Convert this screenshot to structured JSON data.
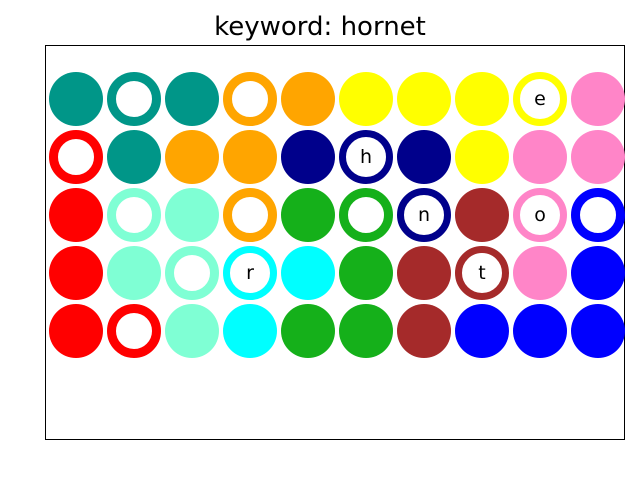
{
  "title": "keyword: hornet",
  "colors": {
    "teal": "#009688",
    "orange": "#ffa500",
    "yellow": "#ffff00",
    "pink": "#ff85c8",
    "red": "#ff0000",
    "navy": "#00008b",
    "aquamarine": "#7fffd4",
    "green": "#15b01a",
    "brown": "#a52a2a",
    "blue": "#0000ff",
    "cyan": "#00ffff"
  },
  "grid": [
    [
      {
        "color": "teal",
        "style": "filled",
        "letter": ""
      },
      {
        "color": "teal",
        "style": "ring",
        "letter": ""
      },
      {
        "color": "teal",
        "style": "filled",
        "letter": ""
      },
      {
        "color": "orange",
        "style": "ring",
        "letter": ""
      },
      {
        "color": "orange",
        "style": "filled",
        "letter": ""
      },
      {
        "color": "yellow",
        "style": "filled",
        "letter": ""
      },
      {
        "color": "yellow",
        "style": "filled",
        "letter": ""
      },
      {
        "color": "yellow",
        "style": "filled",
        "letter": ""
      },
      {
        "color": "yellow",
        "style": "ring",
        "letter": "e"
      },
      {
        "color": "pink",
        "style": "filled",
        "letter": ""
      }
    ],
    [
      {
        "color": "red",
        "style": "ring",
        "letter": ""
      },
      {
        "color": "teal",
        "style": "filled",
        "letter": ""
      },
      {
        "color": "orange",
        "style": "filled",
        "letter": ""
      },
      {
        "color": "orange",
        "style": "filled",
        "letter": ""
      },
      {
        "color": "navy",
        "style": "filled",
        "letter": ""
      },
      {
        "color": "navy",
        "style": "ring",
        "letter": "h"
      },
      {
        "color": "navy",
        "style": "filled",
        "letter": ""
      },
      {
        "color": "yellow",
        "style": "filled",
        "letter": ""
      },
      {
        "color": "pink",
        "style": "filled",
        "letter": ""
      },
      {
        "color": "pink",
        "style": "filled",
        "letter": ""
      }
    ],
    [
      {
        "color": "red",
        "style": "filled",
        "letter": ""
      },
      {
        "color": "aquamarine",
        "style": "ring",
        "letter": ""
      },
      {
        "color": "aquamarine",
        "style": "filled",
        "letter": ""
      },
      {
        "color": "orange",
        "style": "ring",
        "letter": ""
      },
      {
        "color": "green",
        "style": "filled",
        "letter": ""
      },
      {
        "color": "green",
        "style": "ring",
        "letter": ""
      },
      {
        "color": "navy",
        "style": "ring",
        "letter": "n"
      },
      {
        "color": "brown",
        "style": "filled",
        "letter": ""
      },
      {
        "color": "pink",
        "style": "ring",
        "letter": "o"
      },
      {
        "color": "blue",
        "style": "ring",
        "letter": ""
      }
    ],
    [
      {
        "color": "red",
        "style": "filled",
        "letter": ""
      },
      {
        "color": "aquamarine",
        "style": "filled",
        "letter": ""
      },
      {
        "color": "aquamarine",
        "style": "ring",
        "letter": ""
      },
      {
        "color": "cyan",
        "style": "ring",
        "letter": "r"
      },
      {
        "color": "cyan",
        "style": "filled",
        "letter": ""
      },
      {
        "color": "green",
        "style": "filled",
        "letter": ""
      },
      {
        "color": "brown",
        "style": "filled",
        "letter": ""
      },
      {
        "color": "brown",
        "style": "ring",
        "letter": "t"
      },
      {
        "color": "pink",
        "style": "filled",
        "letter": ""
      },
      {
        "color": "blue",
        "style": "filled",
        "letter": ""
      }
    ],
    [
      {
        "color": "red",
        "style": "filled",
        "letter": ""
      },
      {
        "color": "red",
        "style": "ring",
        "letter": ""
      },
      {
        "color": "aquamarine",
        "style": "filled",
        "letter": ""
      },
      {
        "color": "cyan",
        "style": "filled",
        "letter": ""
      },
      {
        "color": "green",
        "style": "filled",
        "letter": ""
      },
      {
        "color": "green",
        "style": "filled",
        "letter": ""
      },
      {
        "color": "brown",
        "style": "filled",
        "letter": ""
      },
      {
        "color": "blue",
        "style": "filled",
        "letter": ""
      },
      {
        "color": "blue",
        "style": "filled",
        "letter": ""
      },
      {
        "color": "blue",
        "style": "filled",
        "letter": ""
      }
    ]
  ]
}
